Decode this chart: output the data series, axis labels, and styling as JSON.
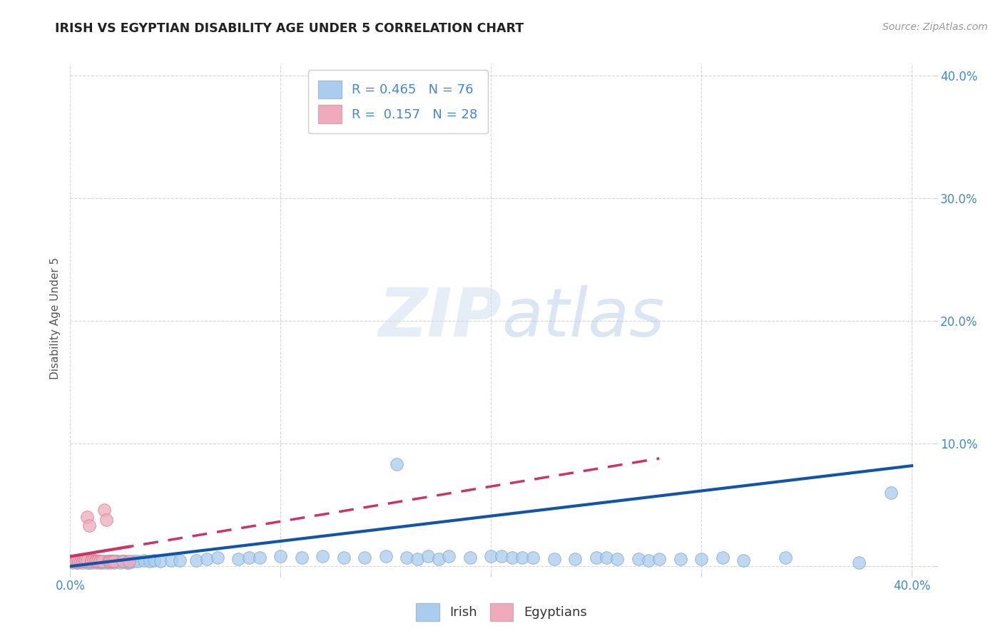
{
  "title": "IRISH VS EGYPTIAN DISABILITY AGE UNDER 5 CORRELATION CHART",
  "source": "Source: ZipAtlas.com",
  "ylabel": "Disability Age Under 5",
  "xlim": [
    0.0,
    0.41
  ],
  "ylim": [
    -0.005,
    0.41
  ],
  "irish_R": 0.465,
  "irish_N": 76,
  "egyptian_R": 0.157,
  "egyptian_N": 28,
  "irish_color": "#aaccee",
  "irish_line_color": "#1155aa",
  "egyptian_color": "#f0aabb",
  "egyptian_line_color": "#cc3366",
  "background_color": "#ffffff",
  "title_color": "#222222",
  "axis_label_color": "#555555",
  "tick_color": "#4488cc",
  "grid_color": "#cccccc",
  "irish_x": [
    0.001,
    0.002,
    0.003,
    0.004,
    0.005,
    0.006,
    0.007,
    0.008,
    0.009,
    0.01,
    0.01,
    0.011,
    0.012,
    0.013,
    0.014,
    0.015,
    0.016,
    0.017,
    0.018,
    0.019,
    0.02,
    0.021,
    0.022,
    0.023,
    0.024,
    0.025,
    0.026,
    0.027,
    0.028,
    0.03,
    0.032,
    0.035,
    0.038,
    0.04,
    0.043,
    0.048,
    0.052,
    0.06,
    0.065,
    0.07,
    0.08,
    0.085,
    0.09,
    0.1,
    0.11,
    0.12,
    0.13,
    0.14,
    0.15,
    0.155,
    0.16,
    0.165,
    0.17,
    0.175,
    0.18,
    0.19,
    0.2,
    0.205,
    0.21,
    0.215,
    0.22,
    0.23,
    0.24,
    0.25,
    0.255,
    0.26,
    0.27,
    0.275,
    0.28,
    0.29,
    0.3,
    0.31,
    0.32,
    0.34,
    0.375,
    0.39
  ],
  "irish_y": [
    0.003,
    0.004,
    0.003,
    0.003,
    0.004,
    0.003,
    0.004,
    0.003,
    0.003,
    0.004,
    0.003,
    0.004,
    0.003,
    0.004,
    0.003,
    0.003,
    0.004,
    0.003,
    0.004,
    0.003,
    0.004,
    0.003,
    0.004,
    0.004,
    0.003,
    0.004,
    0.004,
    0.003,
    0.003,
    0.004,
    0.004,
    0.005,
    0.004,
    0.005,
    0.004,
    0.005,
    0.005,
    0.005,
    0.006,
    0.007,
    0.006,
    0.007,
    0.007,
    0.008,
    0.007,
    0.008,
    0.007,
    0.007,
    0.008,
    0.083,
    0.007,
    0.006,
    0.008,
    0.006,
    0.008,
    0.007,
    0.008,
    0.008,
    0.007,
    0.007,
    0.007,
    0.006,
    0.006,
    0.007,
    0.007,
    0.006,
    0.006,
    0.005,
    0.006,
    0.006,
    0.006,
    0.007,
    0.005,
    0.007,
    0.003,
    0.06
  ],
  "egyptian_x": [
    0.001,
    0.002,
    0.003,
    0.004,
    0.005,
    0.006,
    0.006,
    0.007,
    0.007,
    0.008,
    0.008,
    0.009,
    0.01,
    0.01,
    0.011,
    0.012,
    0.012,
    0.013,
    0.014,
    0.015,
    0.016,
    0.017,
    0.018,
    0.019,
    0.02,
    0.021,
    0.025,
    0.028
  ],
  "egyptian_y": [
    0.004,
    0.004,
    0.004,
    0.004,
    0.004,
    0.005,
    0.004,
    0.005,
    0.005,
    0.005,
    0.04,
    0.033,
    0.005,
    0.004,
    0.005,
    0.005,
    0.004,
    0.004,
    0.004,
    0.004,
    0.046,
    0.038,
    0.004,
    0.004,
    0.004,
    0.004,
    0.004,
    0.004
  ],
  "irish_line_x0": 0.0,
  "irish_line_y0": 0.0,
  "irish_line_x1": 0.4,
  "irish_line_y1": 0.082,
  "egyptian_line_x0": 0.0,
  "egyptian_line_y0": 0.008,
  "egyptian_line_x1": 0.28,
  "egyptian_line_y1": 0.088
}
